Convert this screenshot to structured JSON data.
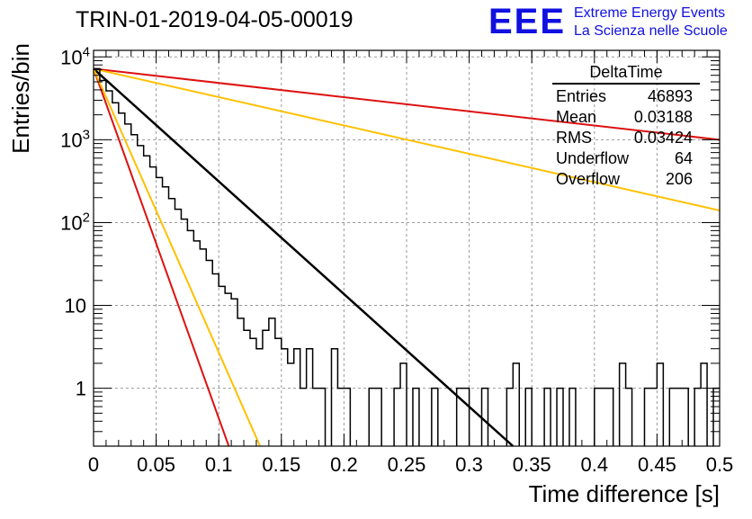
{
  "title": "TRIN-01-2019-04-05-00019",
  "logo": {
    "mark": "EEE",
    "line1": "Extreme Energy Events",
    "line2": "La Scienza nelle Scuole",
    "color": "#1010e0"
  },
  "stats_box": {
    "title": "DeltaTime",
    "rows": [
      {
        "label": "Entries",
        "value": "46893"
      },
      {
        "label": "Mean",
        "value": "0.03188"
      },
      {
        "label": "RMS",
        "value": "0.03424"
      },
      {
        "label": "Underflow",
        "value": "64"
      },
      {
        "label": "Overflow",
        "value": "206"
      }
    ]
  },
  "chart_data": {
    "type": "line",
    "xlabel": "Time difference [s]",
    "ylabel": "Entries/bin",
    "xlim": [
      0,
      0.5
    ],
    "ylim": [
      0.2,
      12000
    ],
    "yscale": "log",
    "grid": true,
    "xticks": [
      "0",
      "0.05",
      "0.1",
      "0.15",
      "0.2",
      "0.25",
      "0.3",
      "0.35",
      "0.4",
      "0.45",
      "0.5"
    ],
    "yticks": [
      {
        "value": 1,
        "label": "1"
      },
      {
        "value": 10,
        "label": "10"
      },
      {
        "value": 100,
        "label": "10",
        "exp": "2"
      },
      {
        "value": 1000,
        "label": "10",
        "exp": "3"
      },
      {
        "value": 10000,
        "label": "10",
        "exp": "4"
      }
    ],
    "histogram": {
      "bin_width": 0.005,
      "counts": [
        7200,
        5200,
        3900,
        2800,
        2100,
        1550,
        1150,
        850,
        640,
        470,
        350,
        270,
        195,
        145,
        110,
        80,
        60,
        48,
        35,
        24,
        17,
        14,
        12,
        7,
        5,
        4,
        3,
        5,
        7,
        4,
        3,
        2,
        3,
        1,
        3,
        1,
        1,
        0,
        3,
        1,
        1,
        0,
        0,
        0,
        1,
        1,
        0,
        0,
        1,
        2,
        0,
        1,
        0,
        0,
        1,
        0,
        0,
        0,
        1,
        1,
        0,
        0,
        1,
        0,
        0,
        0,
        1,
        2,
        0,
        1,
        0,
        0,
        1,
        0,
        1,
        0,
        1,
        0,
        0,
        0,
        1,
        1,
        1,
        0,
        2,
        1,
        0,
        0,
        1,
        1,
        2,
        0,
        1,
        1,
        1,
        0,
        1,
        2,
        0,
        1
      ],
      "color": "#000000"
    },
    "fit_lines": [
      {
        "color": "#000000",
        "points": [
          [
            0,
            7200
          ],
          [
            0.335,
            0.2
          ]
        ]
      },
      {
        "color": "#dd1111",
        "points": [
          [
            0,
            7200
          ],
          [
            0.108,
            0.2
          ]
        ]
      },
      {
        "color": "#ffc000",
        "points": [
          [
            0,
            7200
          ],
          [
            0.133,
            0.2
          ]
        ]
      },
      {
        "color": "#dd1111",
        "points": [
          [
            0,
            7200
          ],
          [
            0.5,
            1000
          ]
        ]
      },
      {
        "color": "#ffc000",
        "points": [
          [
            0,
            7200
          ],
          [
            0.5,
            140
          ]
        ]
      }
    ]
  }
}
